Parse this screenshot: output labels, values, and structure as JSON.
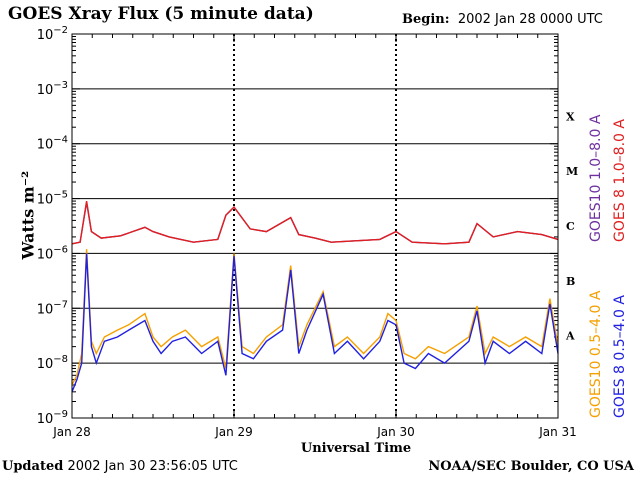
{
  "header": {
    "title": "GOES Xray Flux (5 minute data)",
    "begin_label": "Begin:",
    "begin_value": "2002 Jan 28 0000 UTC"
  },
  "footer": {
    "updated_label": "Updated",
    "updated_value": "2002 Jan 30 23:56:05 UTC",
    "org": "NOAA/SEC Boulder, CO USA"
  },
  "chart_data": {
    "type": "line",
    "title": "GOES Xray Flux (5 minute data)",
    "xlabel": "Universal Time",
    "ylabel": "Watts m⁻²",
    "yscale": "log",
    "ylim": [
      1e-09,
      0.01
    ],
    "xlim": [
      0,
      3
    ],
    "x_ticks": [
      "Jan 28",
      "Jan 29",
      "Jan 30",
      "Jan 31"
    ],
    "y_ticks": [
      {
        "base": "10",
        "exp": "−9"
      },
      {
        "base": "10",
        "exp": "−8"
      },
      {
        "base": "10",
        "exp": "−7"
      },
      {
        "base": "10",
        "exp": "−6"
      },
      {
        "base": "10",
        "exp": "−5"
      },
      {
        "base": "10",
        "exp": "−4"
      },
      {
        "base": "10",
        "exp": "−3"
      },
      {
        "base": "10",
        "exp": "−2"
      }
    ],
    "flare_classes": [
      {
        "label": "A",
        "exp": -7.5
      },
      {
        "label": "B",
        "exp": -6.5
      },
      {
        "label": "C",
        "exp": -5.5
      },
      {
        "label": "M",
        "exp": -4.5
      },
      {
        "label": "X",
        "exp": -3.5
      }
    ],
    "grid": "horizontal lines at each decade from 10^-8 to 10^-3; dotted vertical day lines",
    "legend": [
      {
        "text": "GOES10 1.0–8.0 A",
        "color": "#7030a0"
      },
      {
        "text": "GOES 8 1.0–8.0 A",
        "color": "#e02020"
      },
      {
        "text": "GOES10 0.5–4.0 A",
        "color": "#f5a000"
      },
      {
        "text": "GOES 8 0.5–4.0 A",
        "color": "#2020e0"
      }
    ],
    "series": [
      {
        "name": "GOES 8 1.0–8.0 A",
        "color": "#e02020",
        "x": [
          0,
          0.05,
          0.09,
          0.12,
          0.18,
          0.3,
          0.45,
          0.5,
          0.6,
          0.75,
          0.9,
          0.95,
          1.0,
          1.1,
          1.2,
          1.35,
          1.4,
          1.5,
          1.6,
          1.75,
          1.9,
          2.0,
          2.1,
          2.3,
          2.45,
          2.5,
          2.6,
          2.75,
          2.9,
          3.0
        ],
        "y": [
          1.5e-06,
          1.6e-06,
          9e-06,
          2.5e-06,
          1.9e-06,
          2.1e-06,
          3e-06,
          2.5e-06,
          2e-06,
          1.6e-06,
          1.8e-06,
          5e-06,
          7e-06,
          2.8e-06,
          2.5e-06,
          4.5e-06,
          2.2e-06,
          1.9e-06,
          1.6e-06,
          1.7e-06,
          1.8e-06,
          2.5e-06,
          1.6e-06,
          1.5e-06,
          1.6e-06,
          3.5e-06,
          2e-06,
          2.5e-06,
          2.2e-06,
          1.8e-06
        ]
      },
      {
        "name": "GOES10 1.0–8.0 A",
        "color": "#7030a0",
        "x": [
          0,
          0.05,
          0.09,
          0.12,
          0.18,
          0.3,
          0.45,
          0.5,
          0.6,
          0.75,
          0.9,
          0.95,
          1.0,
          1.1,
          1.2,
          1.35,
          1.4,
          1.5,
          1.6,
          1.75,
          1.9,
          2.0,
          2.1,
          2.3,
          2.45,
          2.5,
          2.6,
          2.75,
          2.9,
          3.0
        ],
        "y": [
          1.5e-06,
          1.6e-06,
          8.5e-06,
          2.5e-06,
          1.9e-06,
          2.1e-06,
          3e-06,
          2.5e-06,
          2e-06,
          1.6e-06,
          1.8e-06,
          5e-06,
          7e-06,
          2.8e-06,
          2.5e-06,
          4.5e-06,
          2.2e-06,
          1.9e-06,
          1.6e-06,
          1.7e-06,
          1.8e-06,
          2.5e-06,
          1.6e-06,
          1.5e-06,
          1.6e-06,
          3.5e-06,
          2e-06,
          2.5e-06,
          2.2e-06,
          1.8e-06
        ]
      },
      {
        "name": "GOES10 0.5–4.0 A",
        "color": "#f5a000",
        "x": [
          0,
          0.03,
          0.06,
          0.09,
          0.12,
          0.15,
          0.2,
          0.28,
          0.35,
          0.45,
          0.5,
          0.55,
          0.62,
          0.7,
          0.8,
          0.9,
          0.95,
          1.0,
          1.05,
          1.12,
          1.2,
          1.3,
          1.35,
          1.4,
          1.45,
          1.55,
          1.62,
          1.7,
          1.8,
          1.9,
          1.95,
          2.0,
          2.05,
          2.12,
          2.2,
          2.3,
          2.45,
          2.5,
          2.55,
          2.6,
          2.7,
          2.8,
          2.9,
          2.95,
          3.0
        ],
        "y": [
          4e-09,
          6e-09,
          1.5e-08,
          1.2e-06,
          2.5e-08,
          1.5e-08,
          3e-08,
          4e-08,
          5e-08,
          8e-08,
          3e-08,
          2e-08,
          3e-08,
          4e-08,
          2e-08,
          3e-08,
          8e-09,
          1e-06,
          2e-08,
          1.5e-08,
          3e-08,
          5e-08,
          6e-07,
          2e-08,
          5e-08,
          2e-07,
          2e-08,
          3e-08,
          1.5e-08,
          3e-08,
          8e-08,
          6e-08,
          1.5e-08,
          1.2e-08,
          2e-08,
          1.5e-08,
          3e-08,
          1.1e-07,
          1.5e-08,
          3e-08,
          2e-08,
          3e-08,
          2e-08,
          1.5e-07,
          2e-08
        ]
      },
      {
        "name": "GOES 8 0.5–4.0 A",
        "color": "#2020e0",
        "x": [
          0,
          0.03,
          0.06,
          0.09,
          0.12,
          0.15,
          0.2,
          0.28,
          0.35,
          0.45,
          0.5,
          0.55,
          0.62,
          0.7,
          0.8,
          0.9,
          0.95,
          1.0,
          1.05,
          1.12,
          1.2,
          1.3,
          1.35,
          1.4,
          1.45,
          1.55,
          1.62,
          1.7,
          1.8,
          1.9,
          1.95,
          2.0,
          2.05,
          2.12,
          2.2,
          2.3,
          2.45,
          2.5,
          2.55,
          2.6,
          2.7,
          2.8,
          2.9,
          2.95,
          3.0
        ],
        "y": [
          3e-09,
          5e-09,
          1e-08,
          1e-06,
          2e-08,
          1e-08,
          2.5e-08,
          3e-08,
          4e-08,
          6e-08,
          2.5e-08,
          1.5e-08,
          2.5e-08,
          3e-08,
          1.5e-08,
          2.5e-08,
          6e-09,
          9e-07,
          1.5e-08,
          1.2e-08,
          2.5e-08,
          4e-08,
          5e-07,
          1.5e-08,
          4e-08,
          1.8e-07,
          1.5e-08,
          2.5e-08,
          1.2e-08,
          2.5e-08,
          6e-08,
          5e-08,
          1e-08,
          8e-09,
          1.5e-08,
          1e-08,
          2.5e-08,
          9e-08,
          1e-08,
          2.5e-08,
          1.5e-08,
          2.5e-08,
          1.5e-08,
          1.2e-07,
          1.5e-08
        ]
      }
    ]
  }
}
